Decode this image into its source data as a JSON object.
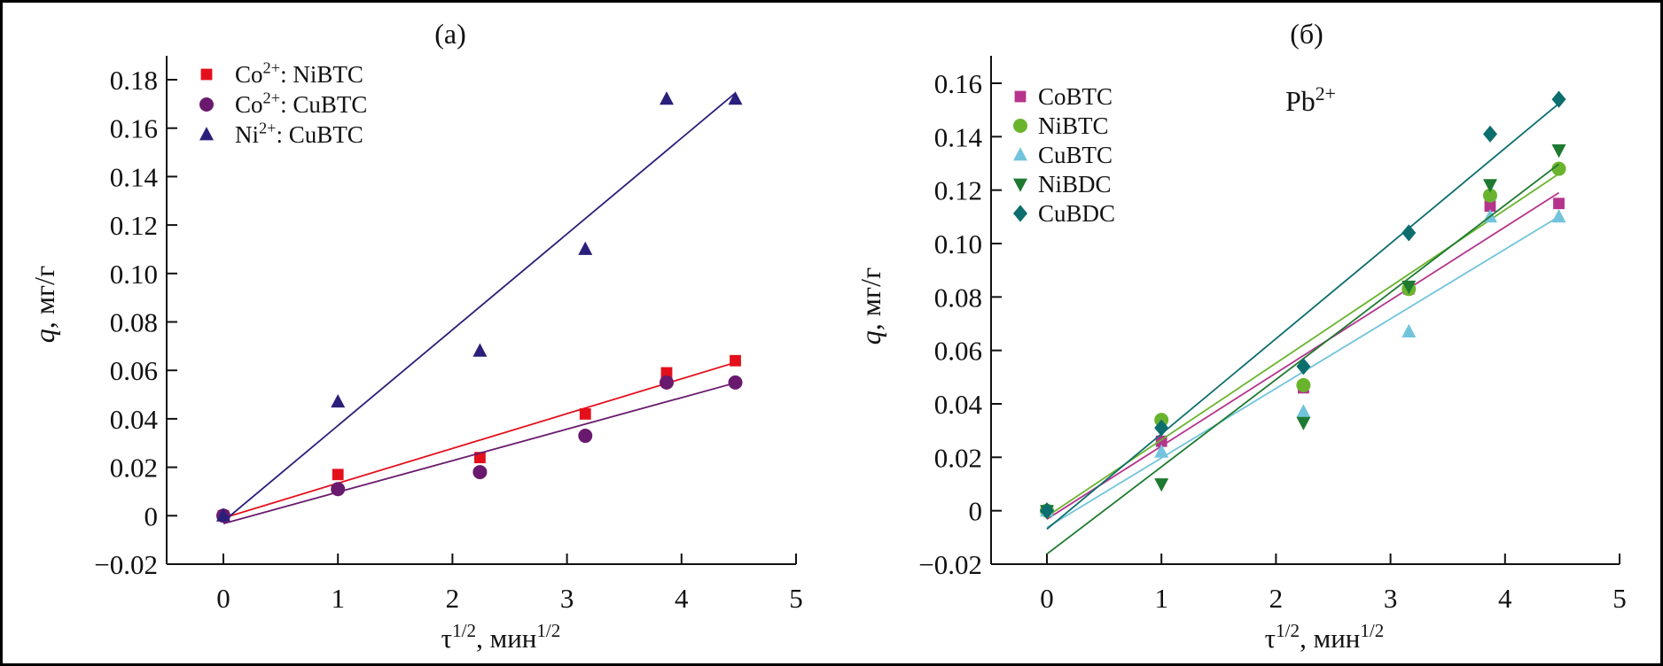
{
  "chart_data": [
    {
      "type": "scatter",
      "panel_label": "(а)",
      "xlabel": {
        "base": "τ",
        "sup": "1/2",
        "mid": ", мин",
        "sup2": "1/2"
      },
      "ylabel": {
        "var": "q",
        "unit": ", мг/г"
      },
      "xlim": [
        0,
        5
      ],
      "ylim": [
        -0.02,
        0.18
      ],
      "xticks": [
        "0",
        "1",
        "2",
        "3",
        "4",
        "5"
      ],
      "yticks": [
        "−0.02",
        "0",
        "0.02",
        "0.04",
        "0.06",
        "0.08",
        "0.10",
        "0.12",
        "0.14",
        "0.16",
        "0.18"
      ],
      "legend_position": "top-left",
      "grid": false,
      "x": [
        0,
        1,
        2.24,
        3.16,
        3.87,
        4.47
      ],
      "series": [
        {
          "name": "Co²⁺: NiBTC",
          "marker": "square",
          "color": "#e3101c",
          "values": [
            0,
            0.017,
            0.024,
            0.042,
            0.059,
            0.064
          ],
          "fit": "linear"
        },
        {
          "name": "Co²⁺: CuBTC",
          "marker": "circle",
          "color": "#6a1a6e",
          "values": [
            0,
            0.011,
            0.018,
            0.033,
            0.055,
            0.055
          ],
          "fit": "linear"
        },
        {
          "name": "Ni²⁺: CuBTC",
          "marker": "triangle-up",
          "color": "#2a1f7a",
          "values": [
            0,
            0.047,
            0.068,
            0.11,
            0.172,
            0.172
          ],
          "fit": "linear"
        }
      ]
    },
    {
      "type": "scatter",
      "panel_label": "(б)",
      "annotation": {
        "base": "Pb",
        "sup": "2+"
      },
      "xlabel": {
        "base": "τ",
        "sup": "1/2",
        "mid": ", мин",
        "sup2": "1/2"
      },
      "ylabel": {
        "var": "q",
        "unit": ", мг/г"
      },
      "xlim": [
        0,
        5
      ],
      "ylim": [
        -0.02,
        0.16
      ],
      "xticks": [
        "0",
        "1",
        "2",
        "3",
        "4",
        "5"
      ],
      "yticks": [
        "−0.02",
        "0",
        "0.02",
        "0.04",
        "0.06",
        "0.08",
        "0.10",
        "0.12",
        "0.14",
        "0.16"
      ],
      "legend_position": "top-left",
      "grid": false,
      "x": [
        0,
        1,
        2.24,
        3.16,
        3.87,
        4.47
      ],
      "series": [
        {
          "name": "CoBTC",
          "marker": "square",
          "color": "#b5348c",
          "values": [
            0,
            0.026,
            0.046,
            0.083,
            0.114,
            0.115
          ],
          "fit": "linear"
        },
        {
          "name": "NiBTC",
          "marker": "circle",
          "color": "#6ab42d",
          "values": [
            0,
            0.034,
            0.047,
            0.083,
            0.118,
            0.128
          ],
          "fit": "linear"
        },
        {
          "name": "CuBTC",
          "marker": "triangle-up",
          "color": "#72c4dc",
          "values": [
            0,
            0.022,
            0.037,
            0.067,
            0.11,
            0.11
          ],
          "fit": "linear"
        },
        {
          "name": "NiBDC",
          "marker": "triangle-down",
          "color": "#1d7a30",
          "values": [
            0,
            0.01,
            0.033,
            0.084,
            0.122,
            0.135
          ],
          "fit": "linear"
        },
        {
          "name": "CuBDC",
          "marker": "diamond",
          "color": "#0d6e6e",
          "values": [
            0,
            0.031,
            0.054,
            0.104,
            0.141,
            0.154
          ],
          "fit": "linear"
        }
      ]
    }
  ]
}
